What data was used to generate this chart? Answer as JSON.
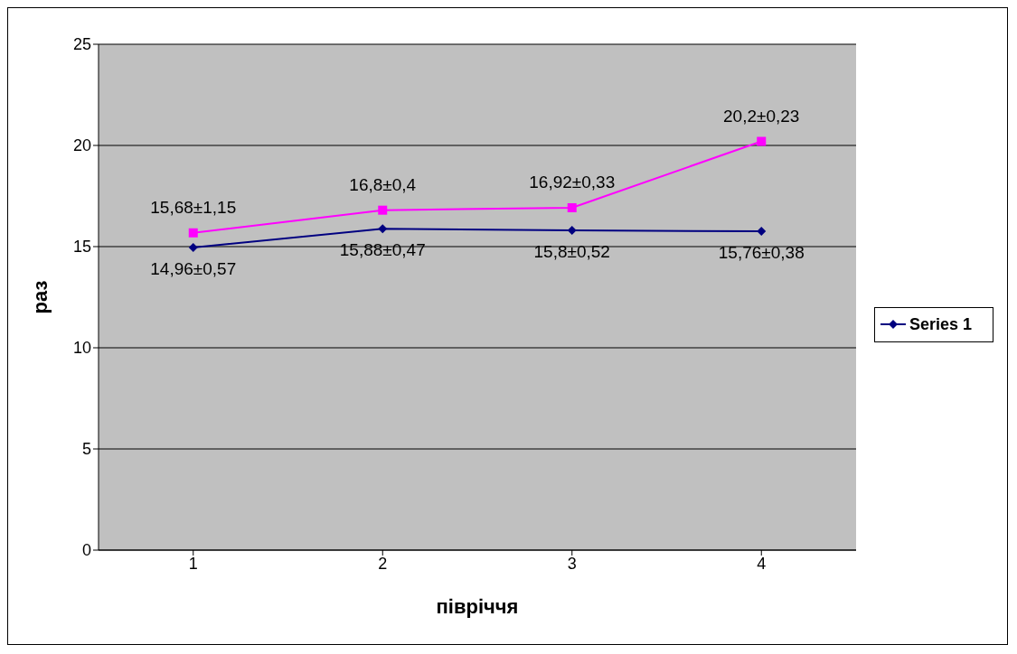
{
  "chart_data": {
    "type": "line",
    "xlabel": "півріччя",
    "ylabel": "раз",
    "categories": [
      "1",
      "2",
      "3",
      "4"
    ],
    "series": [
      {
        "name": "Series 1",
        "color": "#000080",
        "marker": "diamond",
        "values": [
          14.96,
          15.88,
          15.8,
          15.76
        ],
        "value_labels": [
          "14,96±0,57",
          "15,88±0,47",
          "15,8±0,52",
          "15,76±0,38"
        ]
      },
      {
        "color": "#ff00ff",
        "marker": "square",
        "values": [
          15.68,
          16.8,
          16.92,
          20.2
        ],
        "value_labels": [
          "15,68±1,15",
          "16,8±0,4",
          "16,92±0,33",
          "20,2±0,23"
        ]
      }
    ],
    "ylim": [
      0,
      25
    ],
    "yticks": [
      0,
      5,
      10,
      15,
      20,
      25
    ],
    "grid": "y",
    "legend": "right"
  }
}
